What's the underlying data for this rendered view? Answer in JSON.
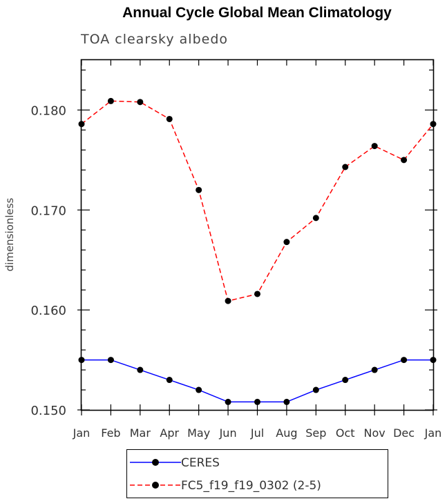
{
  "chart_data": {
    "type": "line",
    "title": "Annual Cycle Global Mean Climatology",
    "subtitle": "TOA clearsky albedo",
    "xlabel": "",
    "ylabel": "dimensionless",
    "categories": [
      "Jan",
      "Feb",
      "Mar",
      "Apr",
      "May",
      "Jun",
      "Jul",
      "Aug",
      "Sep",
      "Oct",
      "Nov",
      "Dec",
      "Jan"
    ],
    "ylim": [
      0.15,
      0.185
    ],
    "yticks": [
      "0.150",
      "0.160",
      "0.170",
      "0.180"
    ],
    "grid": false,
    "legend_position": "bottom",
    "series": [
      {
        "name": "CERES",
        "color": "#0000ff",
        "dash": "solid",
        "values": [
          0.155,
          0.155,
          0.154,
          0.153,
          0.152,
          0.1508,
          0.1508,
          0.1508,
          0.152,
          0.153,
          0.154,
          0.155,
          0.155
        ]
      },
      {
        "name": "FC5_f19_f19_0302 (2-5)",
        "color": "#ff0000",
        "dash": "dashed",
        "values": [
          0.1786,
          0.1809,
          0.1808,
          0.1791,
          0.172,
          0.1609,
          0.1616,
          0.1668,
          0.1692,
          0.1743,
          0.1764,
          0.175,
          0.1786
        ]
      }
    ]
  }
}
